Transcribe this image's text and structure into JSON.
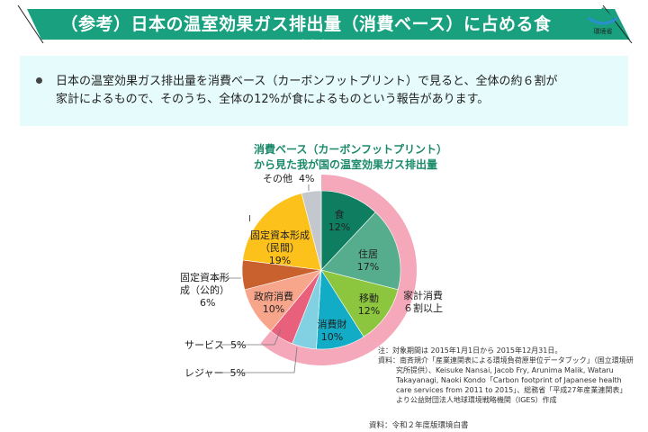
{
  "header": {
    "title": "（参考）日本の温室効果ガス排出量（消費ベース）に占める食の割合",
    "logo_text": "環境省",
    "banner_color": "#18a07f"
  },
  "summary": {
    "line1": "日本の温室効果ガス排出量を消費ベース（カーボンフットプリント）で見ると、全体の約６割が",
    "line2": "家計によるもので、そのうち、全体の12%が食によるものという報告があります。"
  },
  "chart_data": {
    "type": "pie",
    "title_line1": "消費ベース（カーボンフットプリント）",
    "title_line2": "から見た我が国の温室効果ガス排出量",
    "start": "top",
    "direction": "clockwise",
    "slices": [
      {
        "name": "食",
        "value": 12,
        "label": "12%",
        "color": "#0e7d60"
      },
      {
        "name": "住居",
        "value": 17,
        "label": "17%",
        "color": "#55ad8e"
      },
      {
        "name": "移動",
        "value": 12,
        "label": "12%",
        "color": "#8cc63e"
      },
      {
        "name": "消費財",
        "value": 10,
        "label": "10%",
        "color": "#13acc6"
      },
      {
        "name": "レジャー",
        "value": 5,
        "label": "5%",
        "color": "#82d1e2"
      },
      {
        "name": "サービス",
        "value": 5,
        "label": "5%",
        "color": "#e9607c"
      },
      {
        "name": "政府消費",
        "value": 10,
        "label": "10%",
        "color": "#f7a68b"
      },
      {
        "name": "固定資本形成（公的）",
        "value": 6,
        "label": "6%",
        "color": "#c8612d"
      },
      {
        "name": "固定資本形成（民間）",
        "value": 19,
        "label": "19%",
        "color": "#fdc11c"
      },
      {
        "name": "その他",
        "value": 4,
        "label": "4%",
        "color": "#c2c8ce"
      }
    ],
    "household_ring": {
      "label_line1": "家計消費",
      "label_line2": "６割以上",
      "value": 61,
      "color": "#f5a8ba"
    },
    "other_labels": {
      "public_line1": "固定資本形",
      "public_line2": "成（公的）",
      "private_line1": "固定資本形成",
      "private_line2": "（民間）"
    }
  },
  "notes": {
    "line1": "注：対象期間は 2015年1月1日から 2015年12月31日。",
    "line2": "資料：南斉規介「産業連関表による環境負荷原単位データブック」（国立環境研",
    "line3": "究所提供）、Keisuke Nansai, Jacob Fry, Arunima Malik, Wataru",
    "line4": "Takayanagi, Naoki Kondo「Carbon footprint of Japanese health",
    "line5": "care services from 2011 to 2015」、総務省「平成27年産業連関表」",
    "line6": "より公益財団法人地球環境戦略機関（IGES）作成"
  },
  "source": "資料：令和２年度版環境白書",
  "cursor_glyph": "I"
}
